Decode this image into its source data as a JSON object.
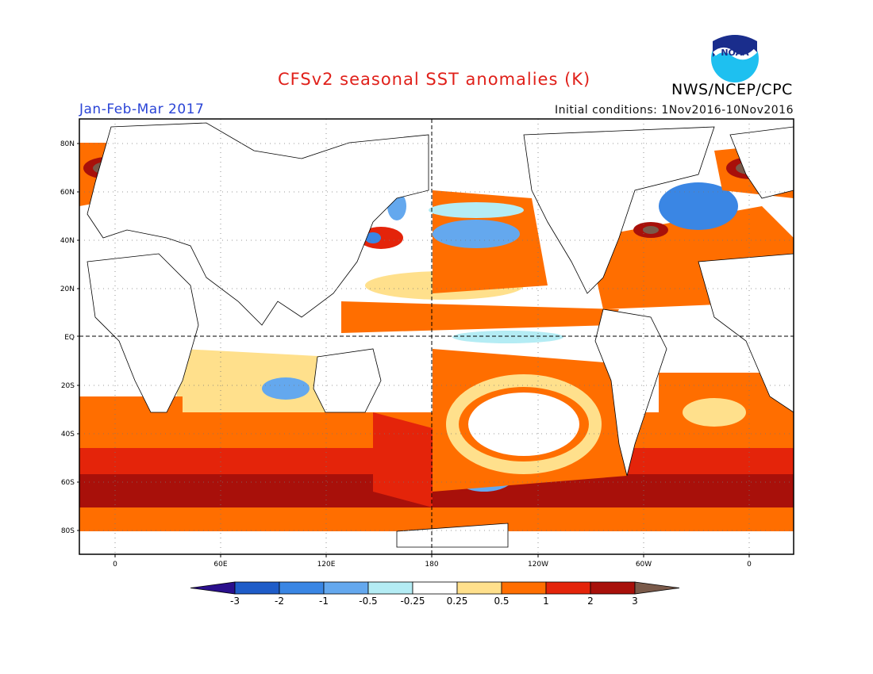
{
  "title": "CFSv2 seasonal SST anomalies (K)",
  "agency": "NWS/NCEP/CPC",
  "logo_text": "NOAA",
  "season": "Jan-Feb-Mar 2017",
  "initial_conditions": "Initial conditions: 1Nov2016-10Nov2016",
  "lat_ticks": [
    "80N",
    "60N",
    "40N",
    "20N",
    "EQ",
    "20S",
    "40S",
    "60S",
    "80S"
  ],
  "lon_ticks": [
    "0",
    "60E",
    "120E",
    "180",
    "120W",
    "60W",
    "0"
  ],
  "colorbar": {
    "tick_labels": [
      "-3",
      "-2",
      "-1",
      "-0.5",
      "-0.25",
      "0.25",
      "0.5",
      "1",
      "2",
      "3"
    ],
    "colors": [
      "#2a0f8c",
      "#1e5cc8",
      "#3a86e4",
      "#64a8ee",
      "#b4ecf4",
      "#ffffff",
      "#ffe08c",
      "#ff6e00",
      "#e4240a",
      "#a8100a",
      "#7a5a4a"
    ]
  },
  "colors": {
    "title": "#e0201a",
    "season": "#2a44d6",
    "warm1": "#ffe08c",
    "warm2": "#ff6e00",
    "warm3": "#e4240a",
    "warm4": "#a8100a",
    "extreme": "#7a5a4a",
    "cool1": "#b4ecf4",
    "cool2": "#64a8ee",
    "cool3": "#3a86e4"
  }
}
